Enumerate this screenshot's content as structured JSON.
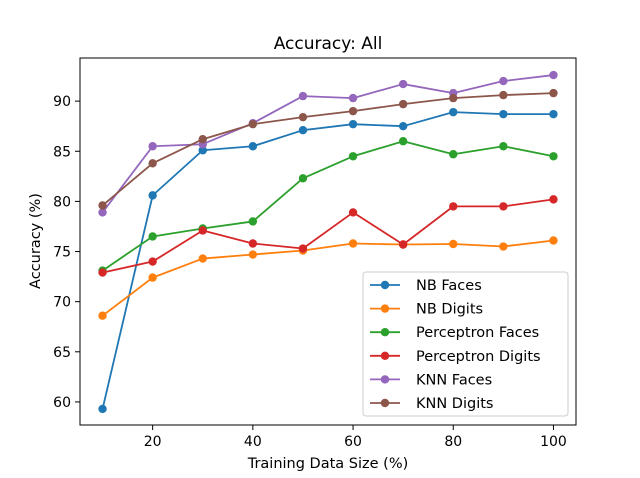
{
  "chart_data": {
    "type": "line",
    "title": "Accuracy: All",
    "xlabel": "Training Data Size (%)",
    "ylabel": "Accuracy (%)",
    "x": [
      10,
      20,
      30,
      40,
      50,
      60,
      70,
      80,
      90,
      100
    ],
    "xlim": [
      5.5,
      104.5
    ],
    "ylim": [
      57.7,
      94.3
    ],
    "xticks": [
      20,
      40,
      60,
      80,
      100
    ],
    "yticks": [
      60,
      65,
      70,
      75,
      80,
      85,
      90
    ],
    "grid": false,
    "legend_position": "lower-right",
    "series": [
      {
        "name": "NB Faces",
        "color": "#1f77b4",
        "values": [
          59.3,
          80.6,
          85.1,
          85.5,
          87.1,
          87.7,
          87.5,
          88.9,
          88.7,
          88.7
        ]
      },
      {
        "name": "NB Digits",
        "color": "#ff7f0e",
        "values": [
          68.6,
          72.4,
          74.3,
          74.7,
          75.1,
          75.8,
          75.7,
          75.75,
          75.5,
          76.1
        ]
      },
      {
        "name": "Perceptron Faces",
        "color": "#2ca02c",
        "values": [
          73.1,
          76.5,
          77.3,
          78.0,
          82.3,
          84.5,
          86.0,
          84.7,
          85.5,
          84.5
        ]
      },
      {
        "name": "Perceptron Digits",
        "color": "#d62728",
        "values": [
          72.9,
          74.0,
          77.1,
          75.8,
          75.3,
          78.9,
          75.7,
          79.5,
          79.5,
          80.2
        ]
      },
      {
        "name": "KNN Faces",
        "color": "#9467bd",
        "values": [
          78.9,
          85.5,
          85.7,
          87.8,
          90.5,
          90.3,
          91.7,
          90.8,
          92.0,
          92.6
        ]
      },
      {
        "name": "KNN Digits",
        "color": "#8c564b",
        "values": [
          79.6,
          83.8,
          86.2,
          87.7,
          88.4,
          89.0,
          89.7,
          90.3,
          90.6,
          90.8
        ]
      }
    ]
  }
}
